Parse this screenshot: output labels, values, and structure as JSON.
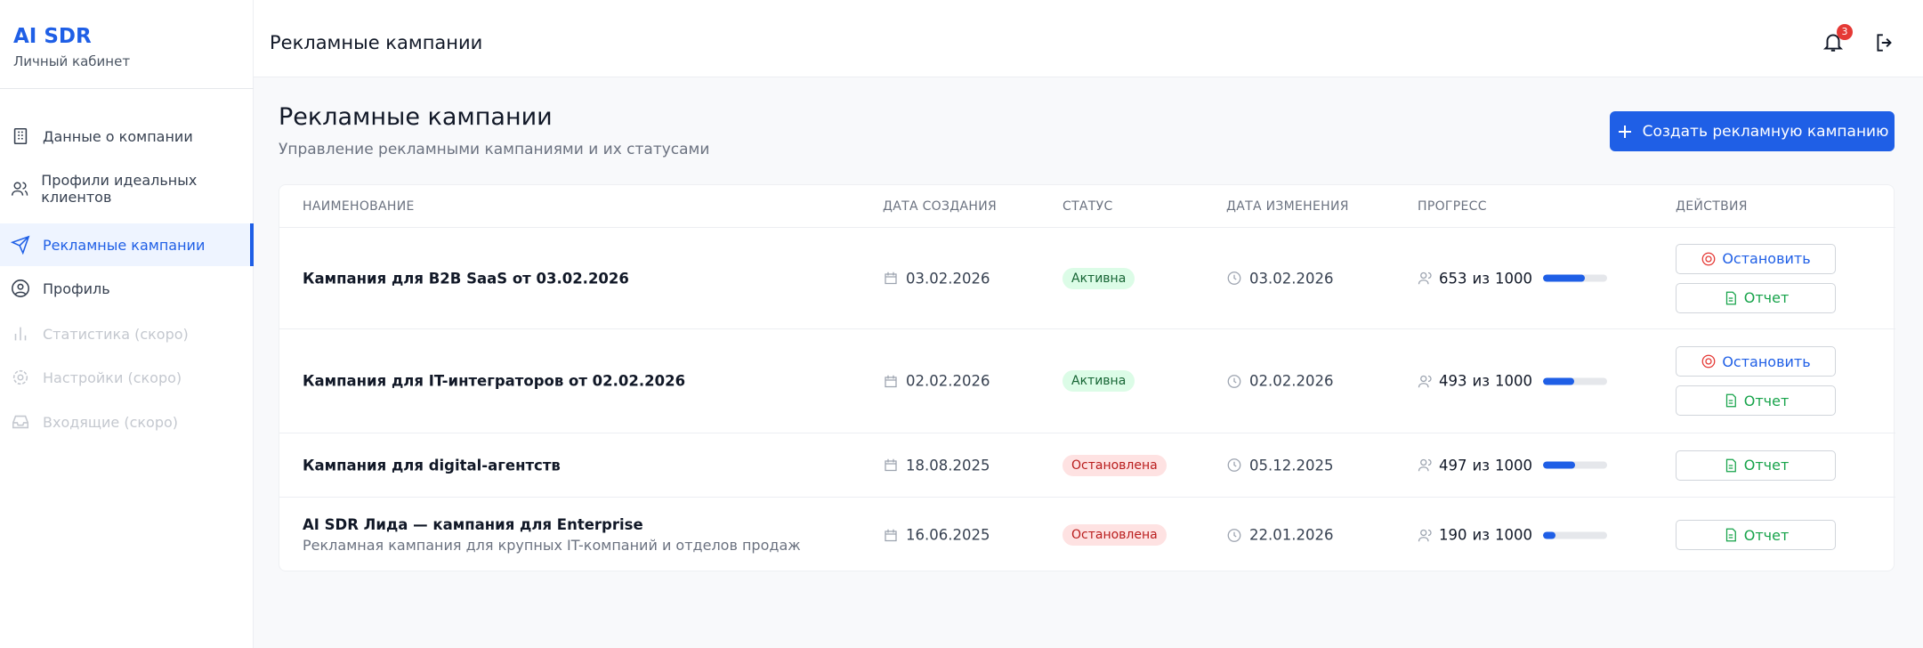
{
  "sidebar": {
    "logo": "AI SDR",
    "subtitle": "Личный кабинет",
    "nav": [
      "Данные о компании",
      "Профили идеальных клиентов",
      "Рекламные кампании",
      "Профиль",
      "Статистика (скоро)",
      "Настройки (скоро)",
      "Входящие (скоро)"
    ]
  },
  "header": {
    "title": "Рекламные кампании",
    "notifications": 3
  },
  "page": {
    "title": "Рекламные кампании",
    "subtitle": "Управление рекламными кампаниями и их статусами",
    "create_button": "Создать рекламную кампанию"
  },
  "table": {
    "columns": [
      "НАИМЕНОВАНИЕ",
      "ДАТА СОЗДАНИЯ",
      "СТАТУС",
      "ДАТА ИЗМЕНЕНИЯ",
      "ПРОГРЕСС",
      "ДЕЙСТВИЯ"
    ],
    "rows": [
      {
        "name": "Кампания для B2B SaaS от 03.02.2026",
        "created": "03.02.2026",
        "status": "Активна",
        "changed": "03.02.2026",
        "progress": {
          "done": 653,
          "of": "из",
          "total": 1000
        },
        "actions": [
          "Остановить",
          "Отчет"
        ]
      },
      {
        "name": "Кампания для IT-интеграторов от 02.02.2026",
        "created": "02.02.2026",
        "status": "Активна",
        "changed": "02.02.2026",
        "progress": {
          "done": 493,
          "of": "из",
          "total": 1000
        },
        "actions": [
          "Остановить",
          "Отчет"
        ]
      },
      {
        "name": "Кампания для digital-агентств",
        "created": "18.08.2025",
        "status": "Остановлена",
        "changed": "05.12.2025",
        "progress": {
          "done": 497,
          "of": "из",
          "total": 1000
        },
        "actions": [
          "Отчет"
        ]
      },
      {
        "name": "AI SDR Лида — кампания для Enterprise",
        "description": "Рекламная кампания для крупных IT-компаний и отделов продаж",
        "created": "16.06.2025",
        "status": "Остановлена",
        "changed": "22.01.2026",
        "progress": {
          "done": 190,
          "of": "из",
          "total": 1000
        },
        "actions": [
          "Отчет"
        ]
      }
    ]
  }
}
